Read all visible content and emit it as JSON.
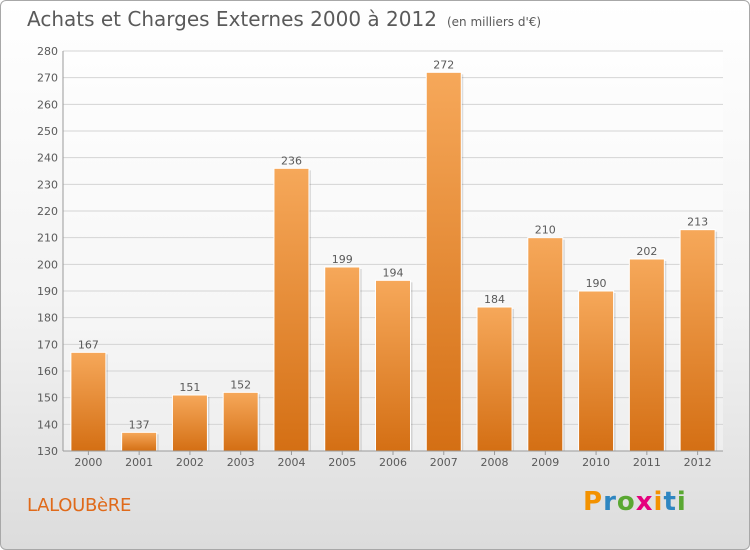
{
  "title": "Achats et Charges Externes 2000 à 2012",
  "unit_note": "(en milliers d'€)",
  "commune": "LALOUBèRE",
  "logo": {
    "letters": [
      "P",
      "r",
      "o",
      "x",
      "i",
      "t",
      "i"
    ],
    "colors": [
      "#f39200",
      "#2e86c1",
      "#5aa832",
      "#e5007d",
      "#f39200",
      "#2e86c1",
      "#5aa832"
    ]
  },
  "colors": {
    "bar_light": "#f6a85a",
    "bar_dark": "#d46f14",
    "text": "#5a5a5a"
  },
  "chart_data": {
    "type": "bar",
    "title": "Achats et Charges Externes 2000 à 2012",
    "subtitle": "(en milliers d'€)",
    "categories": [
      "2000",
      "2001",
      "2002",
      "2003",
      "2004",
      "2005",
      "2006",
      "2007",
      "2008",
      "2009",
      "2010",
      "2011",
      "2012"
    ],
    "values": [
      167,
      137,
      151,
      152,
      236,
      199,
      194,
      272,
      184,
      210,
      190,
      202,
      213
    ],
    "ylim": [
      130,
      280
    ],
    "yticks": [
      130,
      140,
      150,
      160,
      170,
      180,
      190,
      200,
      210,
      220,
      230,
      240,
      250,
      260,
      270,
      280
    ],
    "grid": true,
    "xlabel": "",
    "ylabel": ""
  }
}
